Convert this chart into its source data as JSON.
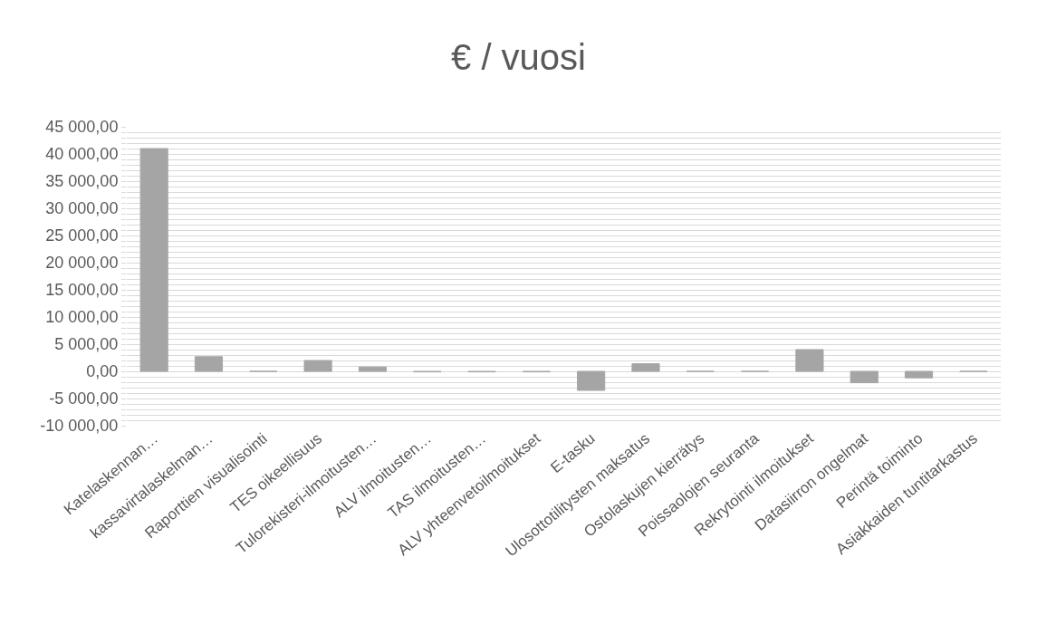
{
  "chart_data": {
    "type": "bar",
    "title": "€ / vuosi",
    "categories": [
      "Katelaskennan…",
      "kassavirtalaskelman…",
      "Raporttien visualisointi",
      "TES oikeellisuus",
      "Tulorekisteri-ilmoitusten…",
      "ALV ilmoitusten…",
      "TAS ilmoitusten…",
      "ALV yhteenvetoilmoitukset",
      "E-tasku",
      "Ulosottotilitysten maksatus",
      "Ostolaskujen kierrätys",
      "Poissaolojen seuranta",
      "Rekrytointi ilmoitukset",
      "Datasiirron ongelmat",
      "Perintä toiminto",
      "Asiakkaiden tuntitarkastus"
    ],
    "values": [
      41000,
      2700,
      0,
      2000,
      800,
      -100,
      -100,
      -100,
      -3500,
      1400,
      0,
      0,
      4000,
      -2100,
      -1200,
      0
    ],
    "color": "#a5a5a5",
    "ylim": [
      -10000,
      45000
    ],
    "yticks": [
      {
        "value": -10000,
        "label": "-10 000,00"
      },
      {
        "value": -9000,
        "label": null
      },
      {
        "value": -8000,
        "label": null
      },
      {
        "value": -7000,
        "label": null
      },
      {
        "value": -6000,
        "label": null
      },
      {
        "value": -5000,
        "label": "-5 000,00"
      },
      {
        "value": -4000,
        "label": null
      },
      {
        "value": -3000,
        "label": null
      },
      {
        "value": -2000,
        "label": null
      },
      {
        "value": -1000,
        "label": null
      },
      {
        "value": 0,
        "label": "0,00"
      },
      {
        "value": 1000,
        "label": null
      },
      {
        "value": 2000,
        "label": null
      },
      {
        "value": 3000,
        "label": null
      },
      {
        "value": 4000,
        "label": null
      },
      {
        "value": 5000,
        "label": "5 000,00"
      },
      {
        "value": 6000,
        "label": null
      },
      {
        "value": 7000,
        "label": null
      },
      {
        "value": 8000,
        "label": null
      },
      {
        "value": 9000,
        "label": null
      },
      {
        "value": 10000,
        "label": "10 000,00"
      },
      {
        "value": 11000,
        "label": null
      },
      {
        "value": 12000,
        "label": null
      },
      {
        "value": 13000,
        "label": null
      },
      {
        "value": 14000,
        "label": null
      },
      {
        "value": 15000,
        "label": "15 000,00"
      },
      {
        "value": 16000,
        "label": null
      },
      {
        "value": 17000,
        "label": null
      },
      {
        "value": 18000,
        "label": null
      },
      {
        "value": 19000,
        "label": null
      },
      {
        "value": 20000,
        "label": "20 000,00"
      },
      {
        "value": 21000,
        "label": null
      },
      {
        "value": 22000,
        "label": null
      },
      {
        "value": 23000,
        "label": null
      },
      {
        "value": 24000,
        "label": null
      },
      {
        "value": 25000,
        "label": "25 000,00"
      },
      {
        "value": 26000,
        "label": null
      },
      {
        "value": 27000,
        "label": null
      },
      {
        "value": 28000,
        "label": null
      },
      {
        "value": 29000,
        "label": null
      },
      {
        "value": 30000,
        "label": "30 000,00"
      },
      {
        "value": 31000,
        "label": null
      },
      {
        "value": 32000,
        "label": null
      },
      {
        "value": 33000,
        "label": null
      },
      {
        "value": 34000,
        "label": null
      },
      {
        "value": 35000,
        "label": "35 000,00"
      },
      {
        "value": 36000,
        "label": null
      },
      {
        "value": 37000,
        "label": null
      },
      {
        "value": 38000,
        "label": null
      },
      {
        "value": 39000,
        "label": null
      },
      {
        "value": 40000,
        "label": "40 000,00"
      },
      {
        "value": 41000,
        "label": null
      },
      {
        "value": 42000,
        "label": null
      },
      {
        "value": 43000,
        "label": null
      },
      {
        "value": 44000,
        "label": null
      },
      {
        "value": 45000,
        "label": "45 000,00"
      }
    ],
    "grid": "y",
    "legend": false
  }
}
